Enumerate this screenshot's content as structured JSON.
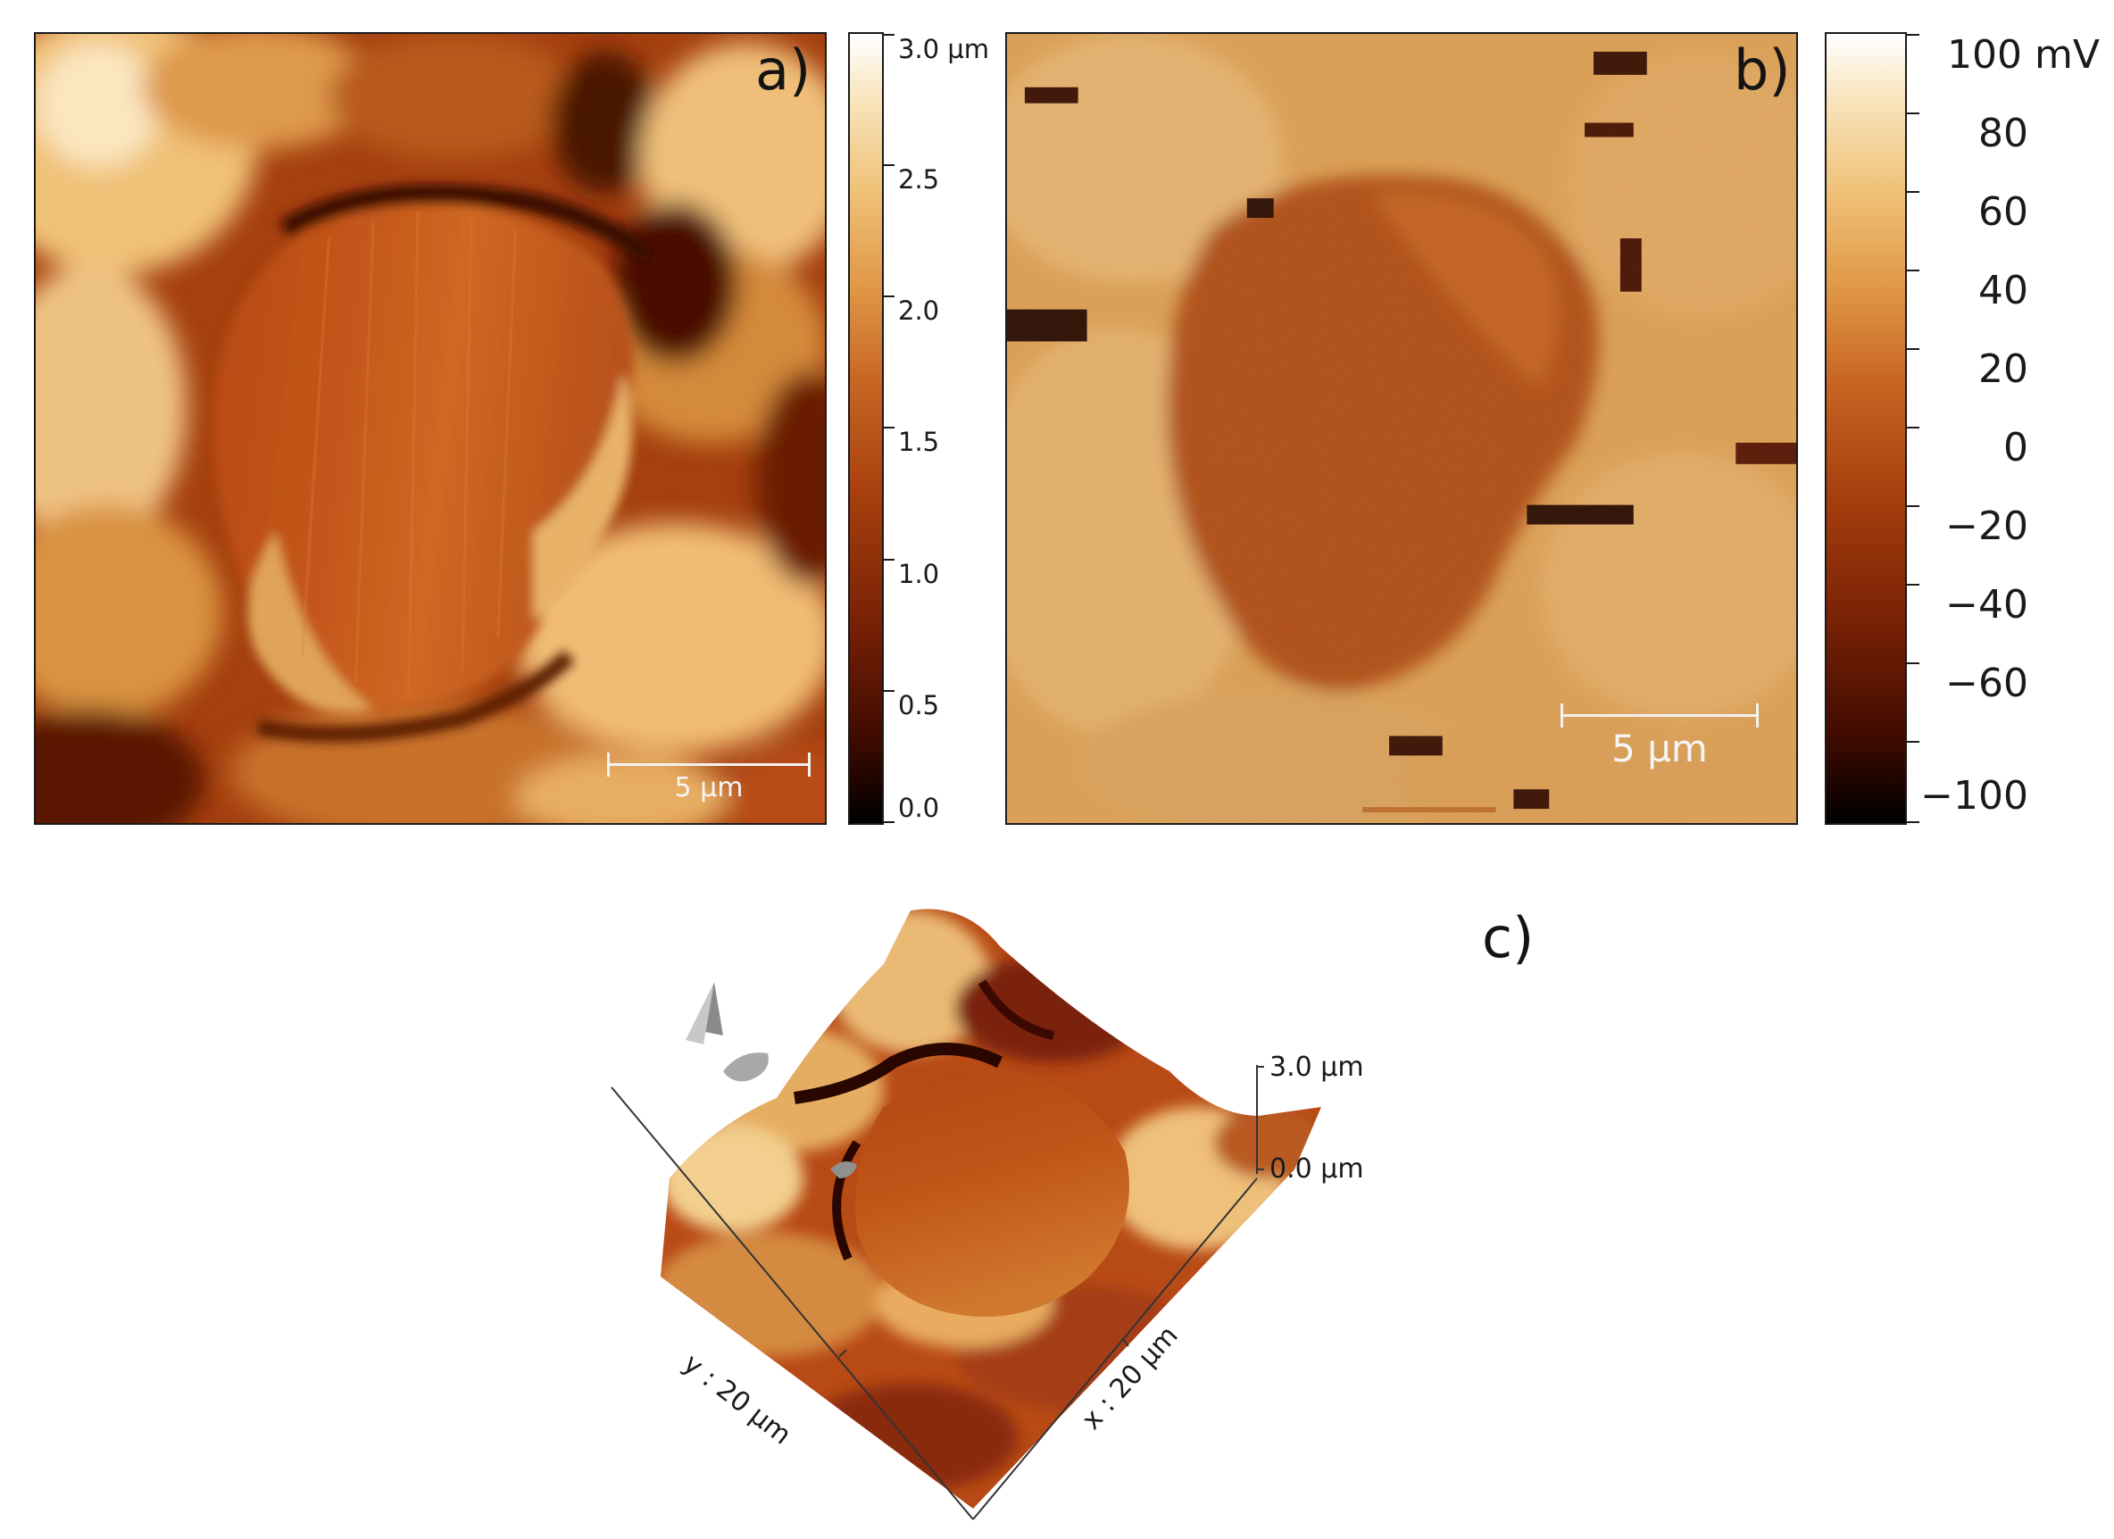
{
  "panels": {
    "a": {
      "letter": "a)",
      "scalebar_label": "5 µm"
    },
    "b": {
      "letter": "b)",
      "scalebar_label": "5 µm"
    },
    "c": {
      "letter": "c)"
    }
  },
  "colorbar_a": {
    "ticks": [
      "3.0 µm",
      "2.5",
      "2.0",
      "1.5",
      "1.0",
      "0.5",
      "0.0"
    ]
  },
  "colorbar_b": {
    "ticks": [
      "100 mV",
      "80",
      "60",
      "40",
      "20",
      "0",
      "−20",
      "−40",
      "−60",
      "−100"
    ]
  },
  "plot3d": {
    "z_max": "3.0 µm",
    "z_min": "0.0 µm",
    "x_label": "x : 20 µm",
    "y_label": "y : 20 µm"
  },
  "colors": {
    "dark": "#3a0c02",
    "mid": "#b44c16",
    "light": "#f3cf90",
    "highlight": "#fff5e0"
  }
}
